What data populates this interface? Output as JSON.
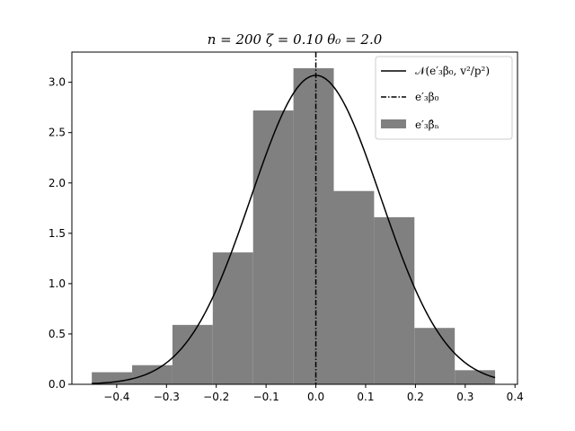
{
  "chart_data": {
    "type": "bar",
    "title": "n = 200 ζ = 0.10 θ₀ = 2.0",
    "xlabel": "",
    "ylabel": "",
    "xlim": [
      -0.49,
      0.405
    ],
    "ylim": [
      0.0,
      3.3
    ],
    "xticks": [
      -0.4,
      -0.3,
      -0.2,
      -0.1,
      0.0,
      0.1,
      0.2,
      0.3,
      0.4
    ],
    "xtick_labels": [
      "−0.4",
      "−0.3",
      "−0.2",
      "−0.1",
      "0.0",
      "0.1",
      "0.2",
      "0.3",
      "0.4"
    ],
    "yticks": [
      0.0,
      0.5,
      1.0,
      1.5,
      2.0,
      2.5,
      3.0
    ],
    "ytick_labels": [
      "0.0",
      "0.5",
      "1.0",
      "1.5",
      "2.0",
      "2.5",
      "3.0"
    ],
    "grid": false,
    "legend_position": "top-right",
    "histogram": {
      "name": "e′₃β̂ₙ",
      "color": "#808080",
      "bin_edges": [
        -0.45,
        -0.369,
        -0.288,
        -0.207,
        -0.126,
        -0.045,
        0.036,
        0.117,
        0.198,
        0.279,
        0.36
      ],
      "densities": [
        0.12,
        0.19,
        0.59,
        1.31,
        2.72,
        3.14,
        1.92,
        1.66,
        0.56,
        0.14
      ]
    },
    "normal_curve": {
      "name": "𝒩(e′₃β₀, v²/p²)",
      "color": "#000000",
      "mean": 0.0,
      "sd": 0.13,
      "x_range": [
        -0.45,
        0.36
      ]
    },
    "true_value_line": {
      "name": "e′₃β₀",
      "x": 0.0,
      "color": "#000000",
      "style": "dash-dot"
    }
  }
}
